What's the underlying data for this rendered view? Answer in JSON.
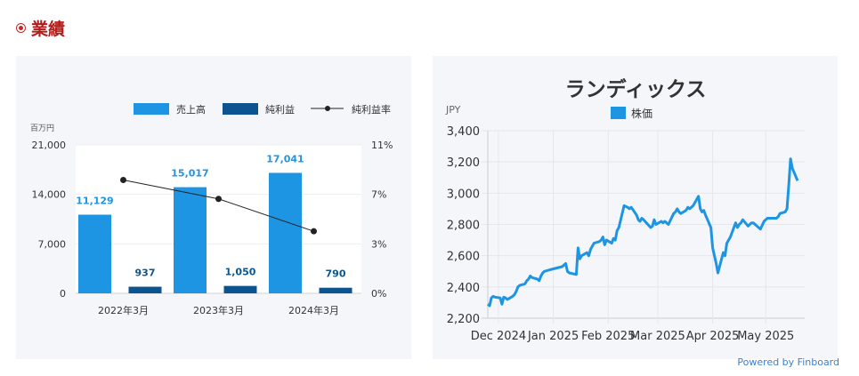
{
  "section": {
    "title": "業績"
  },
  "credit": "Powered by Finboard",
  "colors": {
    "accent": "#b51a1a",
    "sales": "#1e95e3",
    "profit": "#0c548f",
    "margin_line": "#222222",
    "price": "#1e95e3"
  },
  "chart_data": [
    {
      "type": "bar",
      "unit_label": "百万円",
      "legend": [
        "売上高",
        "純利益",
        "純利益率"
      ],
      "categories": [
        "2022年3月",
        "2023年3月",
        "2024年3月"
      ],
      "series": [
        {
          "name": "売上高",
          "values": [
            11129,
            15017,
            17041
          ],
          "labels": [
            "11,129",
            "15,017",
            "17,041"
          ]
        },
        {
          "name": "純利益",
          "values": [
            937,
            1050,
            790
          ],
          "labels": [
            "937",
            "1,050",
            "790"
          ]
        },
        {
          "name": "純利益率",
          "type": "line",
          "axis": "right",
          "values": [
            8.4,
            7.0,
            4.6
          ]
        }
      ],
      "ylim": [
        0,
        21000
      ],
      "yticks": [
        "0",
        "7,000",
        "14,000",
        "21,000"
      ],
      "y2lim": [
        0,
        11
      ],
      "y2ticks": [
        "0%",
        "3%",
        "7%",
        "11%"
      ],
      "grid": true,
      "legend_position": "top-right"
    },
    {
      "type": "line",
      "title": "ランディックス",
      "ylabel": "JPY",
      "series_name": "株価",
      "ylim": [
        2200,
        3400
      ],
      "yticks": [
        "2,200",
        "2,400",
        "2,600",
        "2,800",
        "3,000",
        "3,200",
        "3,400"
      ],
      "xticks": [
        "Dec 2024",
        "Jan 2025",
        "Feb 2025",
        "Mar 2025",
        "Apr 2025",
        "May 2025"
      ],
      "xrange": [
        "2024-11-25",
        "2025-05-23"
      ],
      "legend_position": "top",
      "grid": true,
      "points": [
        [
          "2024-11-25",
          2290
        ],
        [
          "2024-11-26",
          2280
        ],
        [
          "2024-11-27",
          2330
        ],
        [
          "2024-11-28",
          2340
        ],
        [
          "2024-11-29",
          2335
        ],
        [
          "2024-12-02",
          2330
        ],
        [
          "2024-12-03",
          2290
        ],
        [
          "2024-12-04",
          2335
        ],
        [
          "2024-12-05",
          2330
        ],
        [
          "2024-12-06",
          2320
        ],
        [
          "2024-12-09",
          2340
        ],
        [
          "2024-12-10",
          2350
        ],
        [
          "2024-12-11",
          2370
        ],
        [
          "2024-12-12",
          2400
        ],
        [
          "2024-12-13",
          2410
        ],
        [
          "2024-12-16",
          2420
        ],
        [
          "2024-12-17",
          2440
        ],
        [
          "2024-12-18",
          2450
        ],
        [
          "2024-12-19",
          2470
        ],
        [
          "2024-12-20",
          2460
        ],
        [
          "2024-12-23",
          2450
        ],
        [
          "2024-12-24",
          2440
        ],
        [
          "2024-12-25",
          2470
        ],
        [
          "2024-12-26",
          2490
        ],
        [
          "2024-12-27",
          2500
        ],
        [
          "2024-12-30",
          2510
        ],
        [
          "2025-01-06",
          2530
        ],
        [
          "2025-01-07",
          2540
        ],
        [
          "2025-01-08",
          2550
        ],
        [
          "2025-01-09",
          2500
        ],
        [
          "2025-01-10",
          2490
        ],
        [
          "2025-01-14",
          2480
        ],
        [
          "2025-01-15",
          2650
        ],
        [
          "2025-01-16",
          2580
        ],
        [
          "2025-01-17",
          2600
        ],
        [
          "2025-01-20",
          2620
        ],
        [
          "2025-01-21",
          2600
        ],
        [
          "2025-01-22",
          2640
        ],
        [
          "2025-01-23",
          2660
        ],
        [
          "2025-01-24",
          2680
        ],
        [
          "2025-01-27",
          2690
        ],
        [
          "2025-01-28",
          2700
        ],
        [
          "2025-01-29",
          2720
        ],
        [
          "2025-01-30",
          2670
        ],
        [
          "2025-01-31",
          2700
        ],
        [
          "2025-02-03",
          2680
        ],
        [
          "2025-02-04",
          2710
        ],
        [
          "2025-02-05",
          2700
        ],
        [
          "2025-02-06",
          2760
        ],
        [
          "2025-02-07",
          2780
        ],
        [
          "2025-02-10",
          2920
        ],
        [
          "2025-02-12",
          2910
        ],
        [
          "2025-02-13",
          2900
        ],
        [
          "2025-02-14",
          2910
        ],
        [
          "2025-02-17",
          2860
        ],
        [
          "2025-02-18",
          2830
        ],
        [
          "2025-02-19",
          2820
        ],
        [
          "2025-02-20",
          2840
        ],
        [
          "2025-02-21",
          2830
        ],
        [
          "2025-02-25",
          2780
        ],
        [
          "2025-02-26",
          2790
        ],
        [
          "2025-02-27",
          2830
        ],
        [
          "2025-02-28",
          2800
        ],
        [
          "2025-03-03",
          2820
        ],
        [
          "2025-03-04",
          2810
        ],
        [
          "2025-03-05",
          2820
        ],
        [
          "2025-03-06",
          2810
        ],
        [
          "2025-03-07",
          2800
        ],
        [
          "2025-03-10",
          2870
        ],
        [
          "2025-03-11",
          2880
        ],
        [
          "2025-03-12",
          2900
        ],
        [
          "2025-03-13",
          2880
        ],
        [
          "2025-03-14",
          2870
        ],
        [
          "2025-03-17",
          2890
        ],
        [
          "2025-03-18",
          2910
        ],
        [
          "2025-03-19",
          2900
        ],
        [
          "2025-03-21",
          2920
        ],
        [
          "2025-03-24",
          2980
        ],
        [
          "2025-03-25",
          2900
        ],
        [
          "2025-03-26",
          2880
        ],
        [
          "2025-03-27",
          2890
        ],
        [
          "2025-03-28",
          2860
        ],
        [
          "2025-03-31",
          2780
        ],
        [
          "2025-04-01",
          2650
        ],
        [
          "2025-04-02",
          2600
        ],
        [
          "2025-04-03",
          2550
        ],
        [
          "2025-04-04",
          2490
        ],
        [
          "2025-04-07",
          2620
        ],
        [
          "2025-04-08",
          2600
        ],
        [
          "2025-04-09",
          2680
        ],
        [
          "2025-04-10",
          2700
        ],
        [
          "2025-04-11",
          2720
        ],
        [
          "2025-04-14",
          2810
        ],
        [
          "2025-04-15",
          2780
        ],
        [
          "2025-04-16",
          2800
        ],
        [
          "2025-04-17",
          2810
        ],
        [
          "2025-04-18",
          2830
        ],
        [
          "2025-04-21",
          2790
        ],
        [
          "2025-04-22",
          2800
        ],
        [
          "2025-04-23",
          2810
        ],
        [
          "2025-04-24",
          2810
        ],
        [
          "2025-04-25",
          2800
        ],
        [
          "2025-04-28",
          2770
        ],
        [
          "2025-04-30",
          2820
        ],
        [
          "2025-05-01",
          2830
        ],
        [
          "2025-05-02",
          2840
        ],
        [
          "2025-05-07",
          2840
        ],
        [
          "2025-05-08",
          2850
        ],
        [
          "2025-05-09",
          2870
        ],
        [
          "2025-05-12",
          2880
        ],
        [
          "2025-05-13",
          2900
        ],
        [
          "2025-05-14",
          3050
        ],
        [
          "2025-05-15",
          3220
        ],
        [
          "2025-05-16",
          3160
        ],
        [
          "2025-05-19",
          3080
        ]
      ]
    }
  ]
}
